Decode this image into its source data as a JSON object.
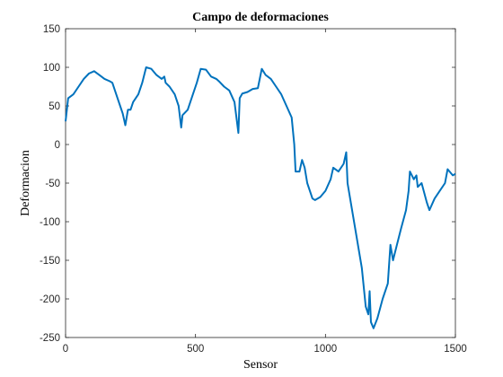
{
  "chart_data": {
    "type": "line",
    "title": "Campo de deformaciones",
    "x_label": "Sensor",
    "y_label": "Deformacion",
    "x": [
      0,
      10,
      30,
      50,
      70,
      90,
      110,
      130,
      150,
      170,
      180,
      190,
      200,
      210,
      220,
      230,
      240,
      250,
      260,
      280,
      295,
      310,
      330,
      350,
      370,
      380,
      385,
      400,
      420,
      435,
      445,
      450,
      470,
      480,
      490,
      505,
      520,
      540,
      560,
      580,
      590,
      610,
      630,
      650,
      665,
      670,
      680,
      700,
      720,
      740,
      755,
      770,
      790,
      810,
      830,
      850,
      870,
      880,
      885,
      900,
      910,
      920,
      930,
      950,
      960,
      980,
      1000,
      1020,
      1030,
      1050,
      1070,
      1080,
      1085,
      1100,
      1120,
      1140,
      1155,
      1165,
      1170,
      1175,
      1185,
      1200,
      1220,
      1240,
      1250,
      1260,
      1275,
      1290,
      1310,
      1320,
      1325,
      1340,
      1350,
      1355,
      1370,
      1390,
      1400,
      1420,
      1440,
      1460,
      1470,
      1490,
      1500
    ],
    "series": [
      {
        "name": "Deformacion",
        "color": "#0072bd",
        "values": [
          30,
          60,
          65,
          75,
          85,
          92,
          95,
          90,
          85,
          82,
          80,
          70,
          60,
          50,
          40,
          25,
          45,
          45,
          55,
          65,
          80,
          100,
          98,
          90,
          85,
          88,
          80,
          75,
          65,
          50,
          22,
          38,
          45,
          55,
          65,
          80,
          98,
          97,
          88,
          85,
          82,
          75,
          70,
          55,
          15,
          60,
          66,
          68,
          72,
          73,
          98,
          90,
          85,
          75,
          65,
          50,
          35,
          0,
          -35,
          -35,
          -20,
          -30,
          -50,
          -70,
          -72,
          -68,
          -60,
          -45,
          -30,
          -35,
          -25,
          -10,
          -50,
          -80,
          -120,
          -160,
          -210,
          -220,
          -190,
          -230,
          -238,
          -225,
          -200,
          -180,
          -130,
          -150,
          -130,
          -110,
          -85,
          -60,
          -35,
          -45,
          -40,
          -55,
          -50,
          -75,
          -85,
          -70,
          -60,
          -50,
          -32,
          -40,
          -38
        ]
      }
    ],
    "xlim": [
      0,
      1500
    ],
    "xticks": [
      0,
      500,
      1000,
      1500
    ],
    "ylim": [
      -250,
      150
    ],
    "yticks": [
      -250,
      -200,
      -150,
      -100,
      -50,
      0,
      50,
      100,
      150
    ]
  }
}
